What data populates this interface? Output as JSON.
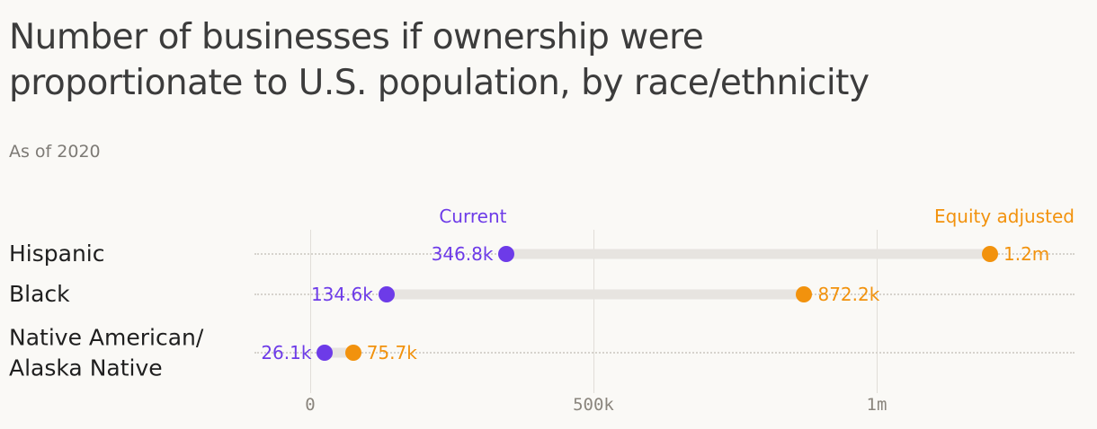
{
  "header": {
    "title": "Number of businesses if ownership were\nproportionate to U.S. population, by race/ethnicity",
    "subtitle": "As of 2020"
  },
  "legend": {
    "current": "Current",
    "equity_adjusted": "Equity adjusted"
  },
  "colors": {
    "background": "#faf9f6",
    "current": "#6d3be8",
    "equity_adjusted": "#f2920d",
    "connector": "#e7e4e0",
    "grid": "#e1ded8",
    "title": "#3c3c3c",
    "subtitle": "#7d7a75",
    "tick": "#8a857d"
  },
  "chart_data": {
    "type": "dumbbell",
    "title": "Number of businesses if ownership were proportionate to U.S. population, by race/ethnicity",
    "subtitle": "As of 2020",
    "categories": [
      "Hispanic",
      "Black",
      "Native American/\nAlaska Native"
    ],
    "series": [
      {
        "name": "Current",
        "values": [
          346800,
          134600,
          26100
        ],
        "value_labels": [
          "346.8k",
          "134.6k",
          "26.1k"
        ],
        "color": "#6d3be8"
      },
      {
        "name": "Equity adjusted",
        "values": [
          1200000,
          872200,
          75700
        ],
        "value_labels": [
          "1.2m",
          "872.2k",
          "75.7k"
        ],
        "color": "#f2920d"
      }
    ],
    "x_axis": {
      "ticks": [
        {
          "value": 0,
          "label": "0"
        },
        {
          "value": 500000,
          "label": "500k"
        },
        {
          "value": 1000000,
          "label": "1m"
        }
      ],
      "range": [
        0,
        1349000
      ]
    },
    "grid": "vertical",
    "legend_position": "top"
  }
}
